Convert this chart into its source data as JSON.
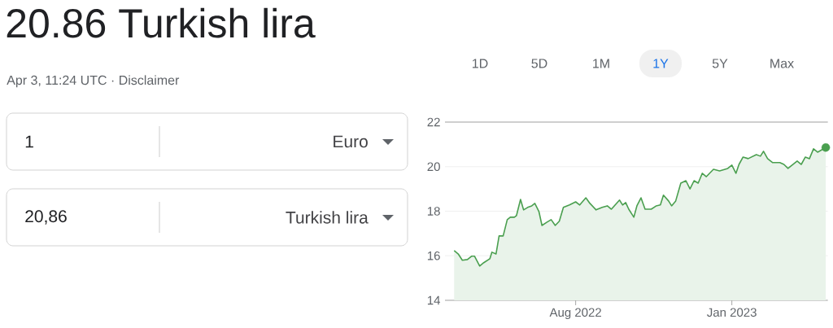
{
  "chart_data": {
    "type": "area",
    "title": "20.86 Turkish lira",
    "subtitle": "Apr 3, 11:24 UTC · Disclaimer",
    "annotations": [
      "1",
      "Euro",
      "20,86",
      "Turkish lira",
      "1D",
      "5D",
      "1M",
      "1Y",
      "5Y",
      "Max"
    ],
    "xlim": [
      "2022-03-26",
      "2023-04-05"
    ],
    "ylim": [
      14,
      22
    ],
    "yticks": [
      14,
      16,
      18,
      20,
      22
    ],
    "xticks": [
      {
        "value": "2022-08-01",
        "label": "Aug 2022"
      },
      {
        "value": "2023-01-01",
        "label": "Jan 2023"
      }
    ],
    "grid": "y",
    "marker": "none",
    "line_style": "solid",
    "series": [
      {
        "color": "#4a9f4f",
        "x": [
          "2022-04-04",
          "2022-04-08",
          "2022-04-12",
          "2022-04-17",
          "2022-04-21",
          "2022-04-24",
          "2022-04-29",
          "2022-05-03",
          "2022-05-09",
          "2022-05-11",
          "2022-05-15",
          "2022-05-18",
          "2022-05-22",
          "2022-05-26",
          "2022-05-29",
          "2022-06-02",
          "2022-06-04",
          "2022-06-08",
          "2022-06-11",
          "2022-06-15",
          "2022-06-19",
          "2022-06-22",
          "2022-06-26",
          "2022-06-29",
          "2022-07-04",
          "2022-07-08",
          "2022-07-12",
          "2022-07-16",
          "2022-07-20",
          "2022-07-26",
          "2022-08-01",
          "2022-08-05",
          "2022-08-11",
          "2022-08-15",
          "2022-08-21",
          "2022-08-27",
          "2022-09-01",
          "2022-09-05",
          "2022-09-13",
          "2022-09-16",
          "2022-09-19",
          "2022-09-22",
          "2022-09-27",
          "2022-09-30",
          "2022-10-04",
          "2022-10-08",
          "2022-10-14",
          "2022-10-19",
          "2022-10-23",
          "2022-10-26",
          "2022-10-31",
          "2022-11-03",
          "2022-11-07",
          "2022-11-12",
          "2022-11-17",
          "2022-11-21",
          "2022-11-25",
          "2022-11-29",
          "2022-12-03",
          "2022-12-07",
          "2022-12-14",
          "2022-12-20",
          "2022-12-28",
          "2023-01-01",
          "2023-01-05",
          "2023-01-08",
          "2023-01-12",
          "2023-01-17",
          "2023-01-25",
          "2023-01-29",
          "2023-02-01",
          "2023-02-05",
          "2023-02-10",
          "2023-02-17",
          "2023-02-21",
          "2023-02-25",
          "2023-03-01",
          "2023-03-06",
          "2023-03-10",
          "2023-03-14",
          "2023-03-18",
          "2023-03-22",
          "2023-03-26",
          "2023-04-03"
        ],
        "values": [
          16.23,
          16.08,
          15.8,
          15.83,
          15.98,
          15.98,
          15.54,
          15.69,
          15.87,
          16.16,
          16.08,
          16.89,
          16.89,
          17.62,
          17.73,
          17.73,
          17.8,
          18.53,
          18.06,
          18.17,
          18.24,
          18.35,
          17.99,
          17.36,
          17.51,
          17.62,
          17.36,
          17.55,
          18.17,
          18.28,
          18.42,
          18.28,
          18.6,
          18.35,
          18.06,
          18.17,
          18.24,
          18.09,
          18.5,
          18.28,
          18.39,
          18.09,
          17.73,
          18.24,
          18.6,
          18.09,
          18.09,
          18.24,
          18.28,
          18.72,
          18.46,
          18.24,
          18.46,
          19.26,
          19.37,
          19.0,
          19.37,
          19.26,
          19.7,
          19.55,
          19.88,
          19.81,
          19.92,
          20.07,
          19.7,
          20.1,
          20.43,
          20.36,
          20.54,
          20.47,
          20.69,
          20.36,
          20.18,
          20.18,
          20.1,
          19.92,
          20.07,
          20.25,
          20.1,
          20.43,
          20.36,
          20.8,
          20.65,
          20.86
        ]
      },
      {
        "type": "scatter",
        "color": "#4a9f4f",
        "marker": "circle",
        "x": [
          "2023-04-03"
        ],
        "values": [
          20.86
        ]
      }
    ]
  }
}
